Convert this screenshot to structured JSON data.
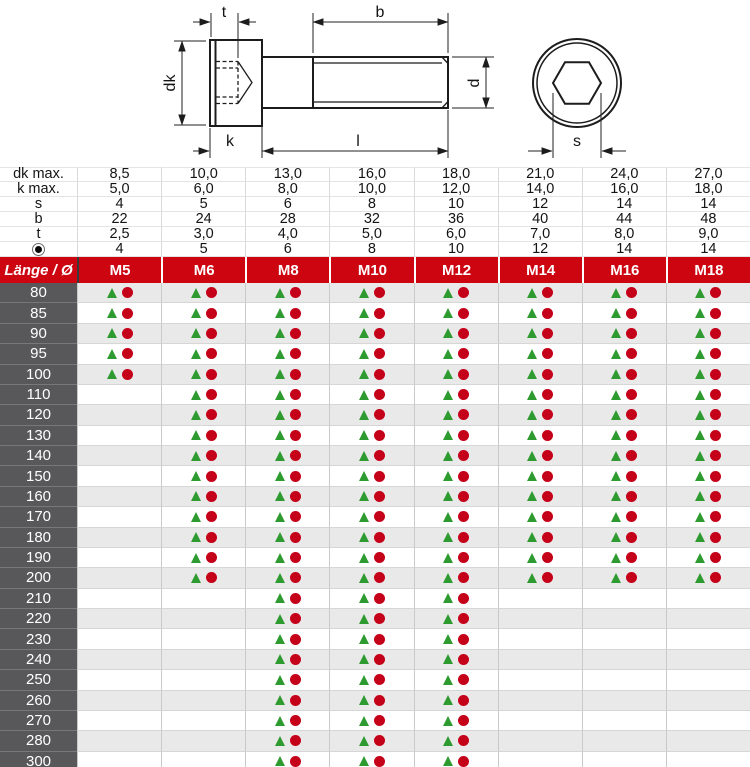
{
  "colors": {
    "header_red": "#cd0511",
    "length_cell_gray": "#58585a",
    "row_stripe": "#e9e9e9",
    "triangle_green": "#2e9b31",
    "circle_red": "#c50019"
  },
  "diagram": {
    "labels": {
      "t": "t",
      "b": "b",
      "dk": "dk",
      "k": "k",
      "l": "l",
      "d": "d",
      "s": "s"
    }
  },
  "spec_table": {
    "rows": [
      {
        "label": "dk max.",
        "values": [
          "8,5",
          "10,0",
          "13,0",
          "16,0",
          "18,0",
          "21,0",
          "24,0",
          "27,0"
        ]
      },
      {
        "label": "k max.",
        "values": [
          "5,0",
          "6,0",
          "8,0",
          "10,0",
          "12,0",
          "14,0",
          "16,0",
          "18,0"
        ]
      },
      {
        "label": "s",
        "values": [
          "4",
          "5",
          "6",
          "8",
          "10",
          "12",
          "14",
          "14"
        ]
      },
      {
        "label": "b",
        "values": [
          "22",
          "24",
          "28",
          "32",
          "36",
          "40",
          "44",
          "48"
        ]
      },
      {
        "label": "t",
        "values": [
          "2,5",
          "3,0",
          "4,0",
          "5,0",
          "6,0",
          "7,0",
          "8,0",
          "9,0"
        ]
      },
      {
        "label": "",
        "symbol": "socket-drive-icon",
        "values": [
          "4",
          "5",
          "6",
          "8",
          "10",
          "12",
          "14",
          "14"
        ]
      }
    ]
  },
  "main_table": {
    "corner_label": "Länge / Ø",
    "columns": [
      "M5",
      "M6",
      "M8",
      "M10",
      "M12",
      "M14",
      "M16",
      "M18"
    ],
    "marker_meaning": {
      "triangle": "green-triangle-marker",
      "circle": "red-circle-marker"
    },
    "rows": [
      {
        "length": "80",
        "available": [
          1,
          1,
          1,
          1,
          1,
          1,
          1,
          1
        ]
      },
      {
        "length": "85",
        "available": [
          1,
          1,
          1,
          1,
          1,
          1,
          1,
          1
        ]
      },
      {
        "length": "90",
        "available": [
          1,
          1,
          1,
          1,
          1,
          1,
          1,
          1
        ]
      },
      {
        "length": "95",
        "available": [
          1,
          1,
          1,
          1,
          1,
          1,
          1,
          1
        ]
      },
      {
        "length": "100",
        "available": [
          1,
          1,
          1,
          1,
          1,
          1,
          1,
          1
        ]
      },
      {
        "length": "110",
        "available": [
          0,
          1,
          1,
          1,
          1,
          1,
          1,
          1
        ]
      },
      {
        "length": "120",
        "available": [
          0,
          1,
          1,
          1,
          1,
          1,
          1,
          1
        ]
      },
      {
        "length": "130",
        "available": [
          0,
          1,
          1,
          1,
          1,
          1,
          1,
          1
        ]
      },
      {
        "length": "140",
        "available": [
          0,
          1,
          1,
          1,
          1,
          1,
          1,
          1
        ]
      },
      {
        "length": "150",
        "available": [
          0,
          1,
          1,
          1,
          1,
          1,
          1,
          1
        ]
      },
      {
        "length": "160",
        "available": [
          0,
          1,
          1,
          1,
          1,
          1,
          1,
          1
        ]
      },
      {
        "length": "170",
        "available": [
          0,
          1,
          1,
          1,
          1,
          1,
          1,
          1
        ]
      },
      {
        "length": "180",
        "available": [
          0,
          1,
          1,
          1,
          1,
          1,
          1,
          1
        ]
      },
      {
        "length": "190",
        "available": [
          0,
          1,
          1,
          1,
          1,
          1,
          1,
          1
        ]
      },
      {
        "length": "200",
        "available": [
          0,
          1,
          1,
          1,
          1,
          1,
          1,
          1
        ]
      },
      {
        "length": "210",
        "available": [
          0,
          0,
          1,
          1,
          1,
          0,
          0,
          0
        ]
      },
      {
        "length": "220",
        "available": [
          0,
          0,
          1,
          1,
          1,
          0,
          0,
          0
        ]
      },
      {
        "length": "230",
        "available": [
          0,
          0,
          1,
          1,
          1,
          0,
          0,
          0
        ]
      },
      {
        "length": "240",
        "available": [
          0,
          0,
          1,
          1,
          1,
          0,
          0,
          0
        ]
      },
      {
        "length": "250",
        "available": [
          0,
          0,
          1,
          1,
          1,
          0,
          0,
          0
        ]
      },
      {
        "length": "260",
        "available": [
          0,
          0,
          1,
          1,
          1,
          0,
          0,
          0
        ]
      },
      {
        "length": "270",
        "available": [
          0,
          0,
          1,
          1,
          1,
          0,
          0,
          0
        ]
      },
      {
        "length": "280",
        "available": [
          0,
          0,
          1,
          1,
          1,
          0,
          0,
          0
        ]
      },
      {
        "length": "300",
        "available": [
          0,
          0,
          1,
          1,
          1,
          0,
          0,
          0
        ]
      }
    ]
  }
}
